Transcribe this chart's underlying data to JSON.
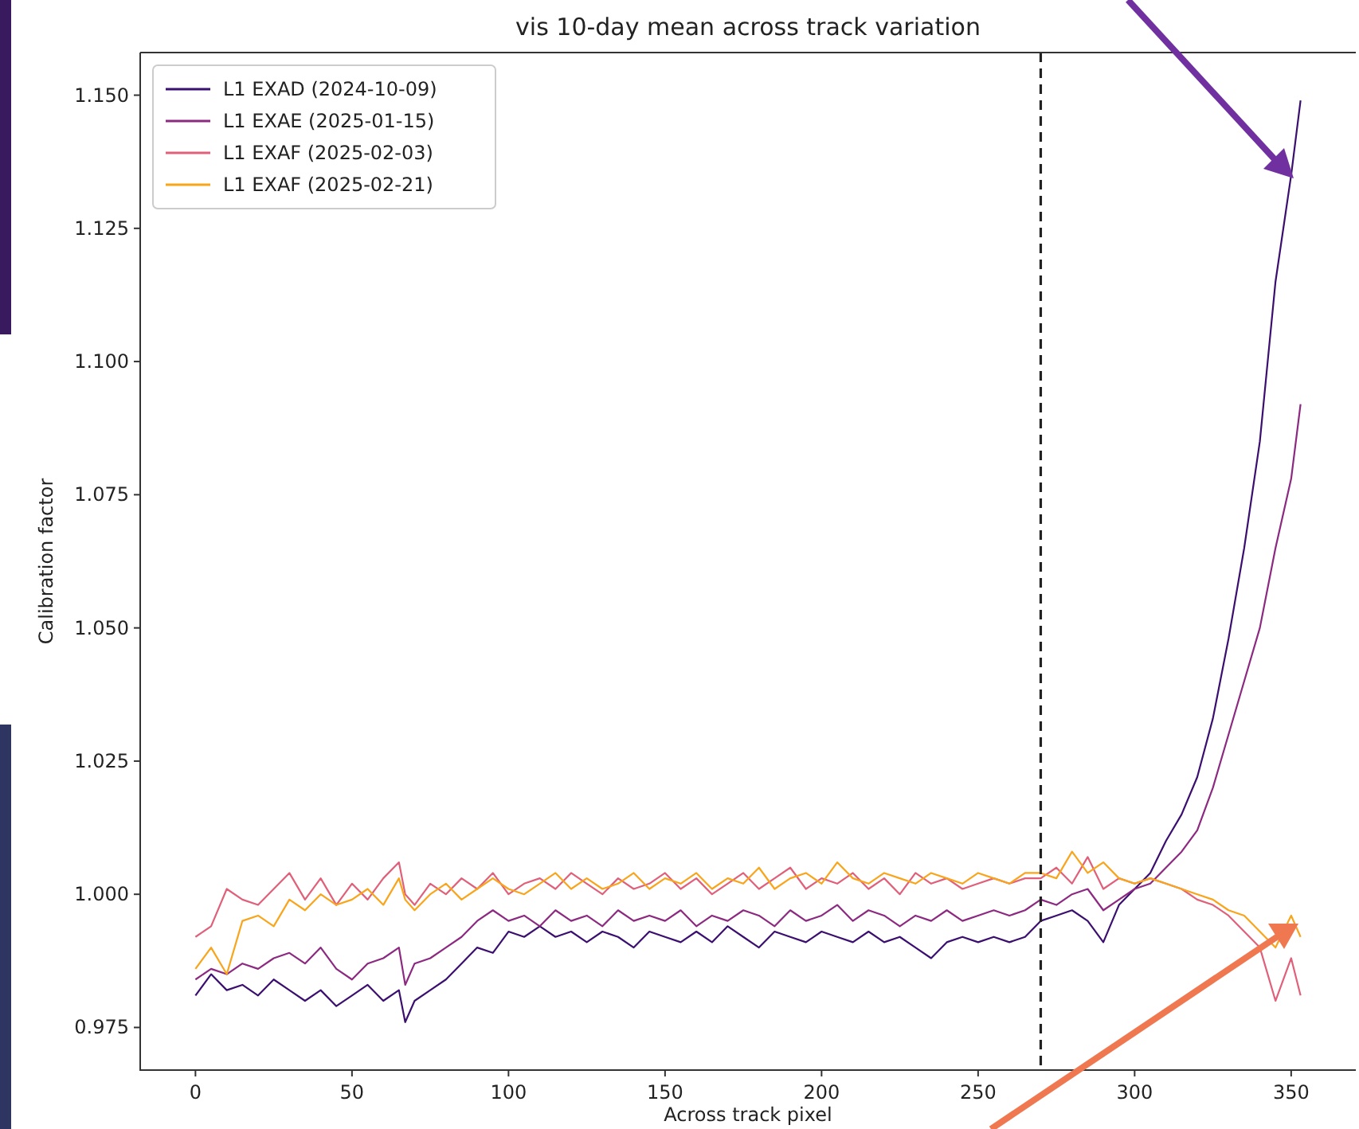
{
  "chart_data": {
    "type": "line",
    "title": "vis 10-day mean across track variation",
    "xlabel": "Across track pixel",
    "ylabel": "Calibration factor",
    "x": [
      0,
      5,
      10,
      15,
      20,
      25,
      30,
      35,
      40,
      45,
      50,
      55,
      60,
      65,
      67,
      70,
      75,
      80,
      85,
      90,
      95,
      100,
      105,
      110,
      115,
      120,
      125,
      130,
      135,
      140,
      145,
      150,
      155,
      160,
      165,
      170,
      175,
      180,
      185,
      190,
      195,
      200,
      205,
      210,
      215,
      220,
      225,
      230,
      235,
      240,
      245,
      250,
      255,
      260,
      265,
      270,
      275,
      280,
      285,
      290,
      295,
      300,
      305,
      310,
      315,
      320,
      325,
      330,
      335,
      340,
      345,
      350,
      353
    ],
    "series": [
      {
        "name": "L1 EXAD (2024-10-09)",
        "color": "#3b0f70",
        "values": [
          0.981,
          0.985,
          0.982,
          0.983,
          0.981,
          0.984,
          0.982,
          0.98,
          0.982,
          0.979,
          0.981,
          0.983,
          0.98,
          0.982,
          0.976,
          0.98,
          0.982,
          0.984,
          0.987,
          0.99,
          0.989,
          0.993,
          0.992,
          0.994,
          0.992,
          0.993,
          0.991,
          0.993,
          0.992,
          0.99,
          0.993,
          0.992,
          0.991,
          0.993,
          0.991,
          0.994,
          0.992,
          0.99,
          0.993,
          0.992,
          0.991,
          0.993,
          0.992,
          0.991,
          0.993,
          0.991,
          0.992,
          0.99,
          0.988,
          0.991,
          0.992,
          0.991,
          0.992,
          0.991,
          0.992,
          0.995,
          0.996,
          0.997,
          0.995,
          0.991,
          0.998,
          1.001,
          1.004,
          1.01,
          1.015,
          1.022,
          1.033,
          1.048,
          1.065,
          1.085,
          1.115,
          1.135,
          1.149
        ]
      },
      {
        "name": "L1 EXAE (2025-01-15)",
        "color": "#8c2981",
        "values": [
          0.984,
          0.986,
          0.985,
          0.987,
          0.986,
          0.988,
          0.989,
          0.987,
          0.99,
          0.986,
          0.984,
          0.987,
          0.988,
          0.99,
          0.983,
          0.987,
          0.988,
          0.99,
          0.992,
          0.995,
          0.997,
          0.995,
          0.996,
          0.994,
          0.997,
          0.995,
          0.996,
          0.994,
          0.997,
          0.995,
          0.996,
          0.995,
          0.997,
          0.994,
          0.996,
          0.995,
          0.997,
          0.996,
          0.994,
          0.997,
          0.995,
          0.996,
          0.998,
          0.995,
          0.997,
          0.996,
          0.994,
          0.996,
          0.995,
          0.997,
          0.995,
          0.996,
          0.997,
          0.996,
          0.997,
          0.999,
          0.998,
          1.0,
          1.001,
          0.997,
          0.999,
          1.001,
          1.002,
          1.005,
          1.008,
          1.012,
          1.02,
          1.03,
          1.04,
          1.05,
          1.065,
          1.078,
          1.092
        ]
      },
      {
        "name": "L1 EXAF (2025-02-03)",
        "color": "#e0607a",
        "values": [
          0.992,
          0.994,
          1.001,
          0.999,
          0.998,
          1.001,
          1.004,
          0.999,
          1.003,
          0.998,
          1.002,
          0.999,
          1.003,
          1.006,
          1.0,
          0.998,
          1.002,
          1.0,
          1.003,
          1.001,
          1.004,
          1.0,
          1.002,
          1.003,
          1.001,
          1.004,
          1.002,
          1.0,
          1.003,
          1.001,
          1.002,
          1.004,
          1.001,
          1.003,
          1.0,
          1.002,
          1.004,
          1.001,
          1.003,
          1.005,
          1.001,
          1.003,
          1.002,
          1.004,
          1.001,
          1.003,
          1.0,
          1.004,
          1.002,
          1.003,
          1.001,
          1.002,
          1.003,
          1.002,
          1.003,
          1.003,
          1.005,
          1.002,
          1.007,
          1.001,
          1.003,
          1.002,
          1.003,
          1.002,
          1.001,
          0.999,
          0.998,
          0.996,
          0.993,
          0.99,
          0.98,
          0.988,
          0.981
        ]
      },
      {
        "name": "L1 EXAF (2025-02-21)",
        "color": "#f9a51c",
        "values": [
          0.986,
          0.99,
          0.985,
          0.995,
          0.996,
          0.994,
          0.999,
          0.997,
          1.0,
          0.998,
          0.999,
          1.001,
          0.998,
          1.003,
          0.999,
          0.997,
          1.0,
          1.002,
          0.999,
          1.001,
          1.003,
          1.001,
          1.0,
          1.002,
          1.004,
          1.001,
          1.003,
          1.001,
          1.002,
          1.004,
          1.001,
          1.003,
          1.002,
          1.004,
          1.001,
          1.003,
          1.002,
          1.005,
          1.001,
          1.003,
          1.004,
          1.002,
          1.006,
          1.003,
          1.002,
          1.004,
          1.003,
          1.002,
          1.004,
          1.003,
          1.002,
          1.004,
          1.003,
          1.002,
          1.004,
          1.004,
          1.003,
          1.008,
          1.004,
          1.006,
          1.003,
          1.002,
          1.003,
          1.002,
          1.001,
          1.0,
          0.999,
          0.997,
          0.996,
          0.993,
          0.99,
          0.996,
          0.992
        ]
      }
    ],
    "xlim": [
      -17.65,
      370.65
    ],
    "xticks": [
      0,
      50,
      100,
      150,
      200,
      250,
      300,
      350
    ],
    "ylim": [
      0.967,
      1.158
    ],
    "yticks": [
      {
        "value": 0.975,
        "label": "0.975"
      },
      {
        "value": 1.0,
        "label": "1.000"
      },
      {
        "value": 1.025,
        "label": "1.025"
      },
      {
        "value": 1.05,
        "label": "1.050"
      },
      {
        "value": 1.075,
        "label": "1.075"
      },
      {
        "value": 1.1,
        "label": "1.100"
      },
      {
        "value": 1.125,
        "label": "1.125"
      },
      {
        "value": 1.15,
        "label": "1.150"
      }
    ],
    "ref_lines": [
      {
        "axis": "x",
        "value": 270,
        "color": "#222222",
        "line_style": "dashed"
      }
    ],
    "legend": "top left",
    "grid": false,
    "line_style": "solid"
  }
}
